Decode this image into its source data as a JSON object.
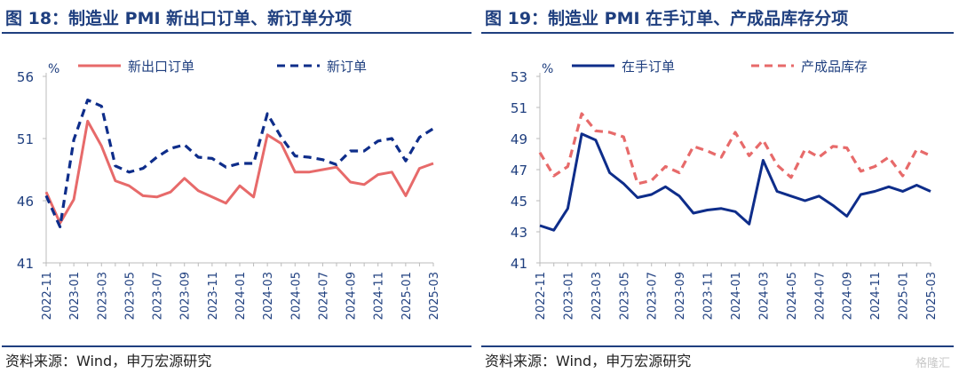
{
  "colors": {
    "title": "#1f3f7f",
    "axis": "#1f3f7f",
    "navy": "#0e2d8a",
    "red": "#e76a6a",
    "rule": "#1f3f7f"
  },
  "watermark": "格隆汇",
  "chart_data": [
    {
      "type": "line",
      "title": "图 18：制造业 PMI 新出口订单、新订单分项",
      "source": "资料来源：Wind，申万宏源研究",
      "unit": "%",
      "ylim": [
        41,
        56
      ],
      "yticks": [
        "56",
        "51",
        "46",
        "41"
      ],
      "x": [
        "2022-11",
        "2022-12",
        "2023-01",
        "2023-02",
        "2023-03",
        "2023-04",
        "2023-05",
        "2023-06",
        "2023-07",
        "2023-08",
        "2023-09",
        "2023-10",
        "2023-11",
        "2023-12",
        "2024-01",
        "2024-02",
        "2024-03",
        "2024-04",
        "2024-05",
        "2024-06",
        "2024-07",
        "2024-08",
        "2024-09",
        "2024-10",
        "2024-11",
        "2024-12",
        "2025-01",
        "2025-02",
        "2025-03"
      ],
      "xticks": [
        "2022-11",
        "2023-01",
        "2023-03",
        "2023-05",
        "2023-07",
        "2023-09",
        "2023-11",
        "2024-01",
        "2024-03",
        "2024-05",
        "2024-07",
        "2024-09",
        "2024-11",
        "2025-01",
        "2025-03"
      ],
      "legend_position": "top",
      "series": [
        {
          "name": "新出口订单",
          "color": "#e76a6a",
          "style": "solid",
          "values": [
            46.7,
            44.2,
            46.1,
            52.4,
            50.4,
            47.6,
            47.2,
            46.4,
            46.3,
            46.7,
            47.8,
            46.8,
            46.3,
            45.8,
            47.2,
            46.3,
            51.3,
            50.6,
            48.3,
            48.3,
            48.5,
            48.7,
            47.5,
            47.3,
            48.1,
            48.3,
            46.4,
            48.6,
            49.0
          ]
        },
        {
          "name": "新订单",
          "color": "#0e2d8a",
          "style": "dashed",
          "values": [
            46.4,
            43.9,
            50.9,
            54.1,
            53.6,
            48.8,
            48.3,
            48.6,
            49.5,
            50.2,
            50.5,
            49.5,
            49.4,
            48.7,
            49.0,
            49.0,
            53.0,
            51.1,
            49.6,
            49.5,
            49.3,
            48.9,
            50.0,
            50.0,
            50.8,
            51.0,
            49.2,
            51.1,
            51.8
          ]
        }
      ]
    },
    {
      "type": "line",
      "title": "图 19：制造业 PMI 在手订单、产成品库存分项",
      "source": "资料来源：Wind，申万宏源研究",
      "unit": "%",
      "ylim": [
        41,
        53
      ],
      "yticks": [
        "53",
        "51",
        "49",
        "47",
        "45",
        "43",
        "41"
      ],
      "x": [
        "2022-11",
        "2022-12",
        "2023-01",
        "2023-02",
        "2023-03",
        "2023-04",
        "2023-05",
        "2023-06",
        "2023-07",
        "2023-08",
        "2023-09",
        "2023-10",
        "2023-11",
        "2023-12",
        "2024-01",
        "2024-02",
        "2024-03",
        "2024-04",
        "2024-05",
        "2024-06",
        "2024-07",
        "2024-08",
        "2024-09",
        "2024-10",
        "2024-11",
        "2024-12",
        "2025-01",
        "2025-02",
        "2025-03"
      ],
      "xticks": [
        "2022-11",
        "2023-01",
        "2023-03",
        "2023-05",
        "2023-07",
        "2023-09",
        "2023-11",
        "2024-01",
        "2024-03",
        "2024-05",
        "2024-07",
        "2024-09",
        "2024-11",
        "2025-01",
        "2025-03"
      ],
      "legend_position": "top",
      "series": [
        {
          "name": "在手订单",
          "color": "#0e2d8a",
          "style": "solid",
          "values": [
            43.4,
            43.1,
            44.5,
            49.3,
            48.9,
            46.8,
            46.1,
            45.2,
            45.4,
            45.9,
            45.3,
            44.2,
            44.4,
            44.5,
            44.3,
            43.5,
            47.6,
            45.6,
            45.3,
            45.0,
            45.3,
            44.7,
            44.0,
            45.4,
            45.6,
            45.9,
            45.6,
            46.0,
            45.6
          ]
        },
        {
          "name": "产成品库存",
          "color": "#e76a6a",
          "style": "dashed",
          "values": [
            48.1,
            46.6,
            47.2,
            50.6,
            49.5,
            49.4,
            49.1,
            46.1,
            46.3,
            47.2,
            46.8,
            48.5,
            48.2,
            47.8,
            49.4,
            47.9,
            48.9,
            47.3,
            46.5,
            48.3,
            47.8,
            48.5,
            48.4,
            46.9,
            47.2,
            47.8,
            46.6,
            48.3,
            47.9
          ]
        }
      ]
    }
  ]
}
